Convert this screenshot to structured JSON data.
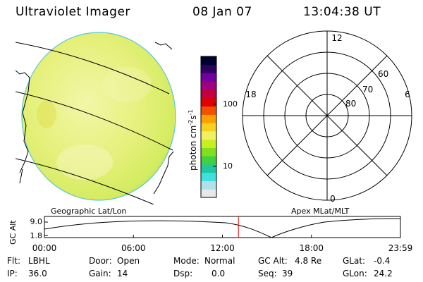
{
  "header": {
    "title": "Ultraviolet Imager",
    "date": "08 Jan 07",
    "time": "13:04:38 UT"
  },
  "colorbar": {
    "unit": "photon cm",
    "unit_exp1": "-2",
    "unit_mid": "s",
    "unit_exp2": "-1",
    "ticks": [
      {
        "label": "100",
        "value": 100
      },
      {
        "label": "10",
        "value": 10
      }
    ],
    "colors": [
      "#e8e8e8",
      "#b0e0e8",
      "#40e0e0",
      "#20c8a0",
      "#40d040",
      "#80e020",
      "#c8f020",
      "#f0f060",
      "#f8d020",
      "#f8a000",
      "#f05000",
      "#e00000",
      "#c00040",
      "#a00080",
      "#7000a0",
      "#300060",
      "#000030"
    ]
  },
  "polar": {
    "mlt_labels": [
      {
        "label": "12",
        "angle": 90
      },
      {
        "label": "18",
        "angle": 180
      },
      {
        "label": "6",
        "angle": 0
      },
      {
        "label": "0",
        "angle": 270
      }
    ],
    "lat_labels": [
      {
        "label": "60",
        "ring": 3
      },
      {
        "label": "70",
        "ring": 2
      },
      {
        "label": "80",
        "ring": 1
      }
    ]
  },
  "panels": {
    "left_label": "Geographic Lat/Lon",
    "right_label": "Apex MLat/MLT"
  },
  "alt_plot": {
    "ylabel": "GC Alt",
    "ticks": [
      "9.0",
      "1.8"
    ],
    "x_ticks": [
      "00:00",
      "06:00",
      "12:00",
      "18:00",
      "23:59"
    ],
    "current_time_hours": 13.08,
    "marker_color": "#e00000"
  },
  "info": {
    "flt_label": "Flt:",
    "flt_value": "LBHL",
    "ip_label": "IP:",
    "ip_value": "36.0",
    "door_label": "Door:",
    "door_value": "Open",
    "gain_label": "Gain:",
    "gain_value": "14",
    "mode_label": "Mode:",
    "mode_value": "Normal",
    "dsp_label": "Dsp:",
    "dsp_value": "0.0",
    "gcalt_label": "GC Alt:",
    "gcalt_value": "4.8 Re",
    "seq_label": "Seq:",
    "seq_value": "39",
    "glat_label": "GLat:",
    "glat_value": "-0.4",
    "glon_label": "GLon:",
    "glon_value": "24.2"
  }
}
